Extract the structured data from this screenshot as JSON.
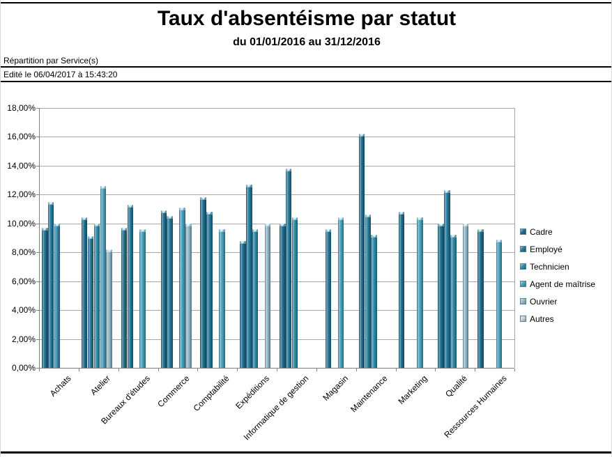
{
  "page": {
    "title": "Taux d'absentéisme par statut",
    "subtitle": "du 01/01/2016 au 31/12/2016",
    "filter_label": "Répartition par Service(s)",
    "edited_label": "Edité le 06/04/2017 à 15:43:20"
  },
  "chart_data": {
    "type": "bar",
    "title": "Taux d'absentéisme par statut",
    "subtitle": "du 01/01/2016 au 31/12/2016",
    "grid": true,
    "legend_position": "right",
    "ylim": [
      0,
      18
    ],
    "ytick_step": 2,
    "yticklabels": [
      "0,00%",
      "2,00%",
      "4,00%",
      "6,00%",
      "8,00%",
      "10,00%",
      "12,00%",
      "14,00%",
      "16,00%",
      "18,00%"
    ],
    "categories": [
      "Achats",
      "Atelier",
      "Bureaux d'études",
      "Commerce",
      "Comptabilité",
      "Expéditions",
      "Informatique de gestion",
      "Magasin",
      "Maintenance",
      "Marketing",
      "Qualité",
      "Ressources Humaines"
    ],
    "series": [
      {
        "name": "Cadre",
        "color": "#1d6e8e",
        "values": [
          9.7,
          10.4,
          9.7,
          10.9,
          11.8,
          8.8,
          10.0,
          null,
          16.2,
          10.8,
          10.0,
          9.6
        ]
      },
      {
        "name": "Employé",
        "color": "#227a9b",
        "values": [
          11.5,
          9.1,
          11.3,
          10.5,
          10.8,
          12.7,
          13.8,
          9.6,
          10.6,
          null,
          12.3,
          null
        ]
      },
      {
        "name": "Technicien",
        "color": "#2e8cab",
        "values": [
          10.0,
          10.0,
          null,
          null,
          null,
          9.6,
          10.4,
          null,
          9.2,
          null,
          9.2,
          null
        ]
      },
      {
        "name": "Agent de maîtrise",
        "color": "#4aa2bf",
        "values": [
          null,
          12.6,
          9.6,
          11.1,
          9.6,
          null,
          null,
          10.4,
          null,
          10.4,
          null,
          8.9
        ]
      },
      {
        "name": "Ouvrier",
        "color": "#93bccc",
        "values": [
          null,
          8.2,
          null,
          10.0,
          null,
          10.0,
          null,
          null,
          null,
          null,
          10.0,
          null
        ]
      },
      {
        "name": "Autres",
        "color": "#c6d6dd",
        "values": [
          null,
          null,
          null,
          null,
          null,
          null,
          null,
          null,
          null,
          null,
          null,
          null
        ]
      }
    ]
  }
}
